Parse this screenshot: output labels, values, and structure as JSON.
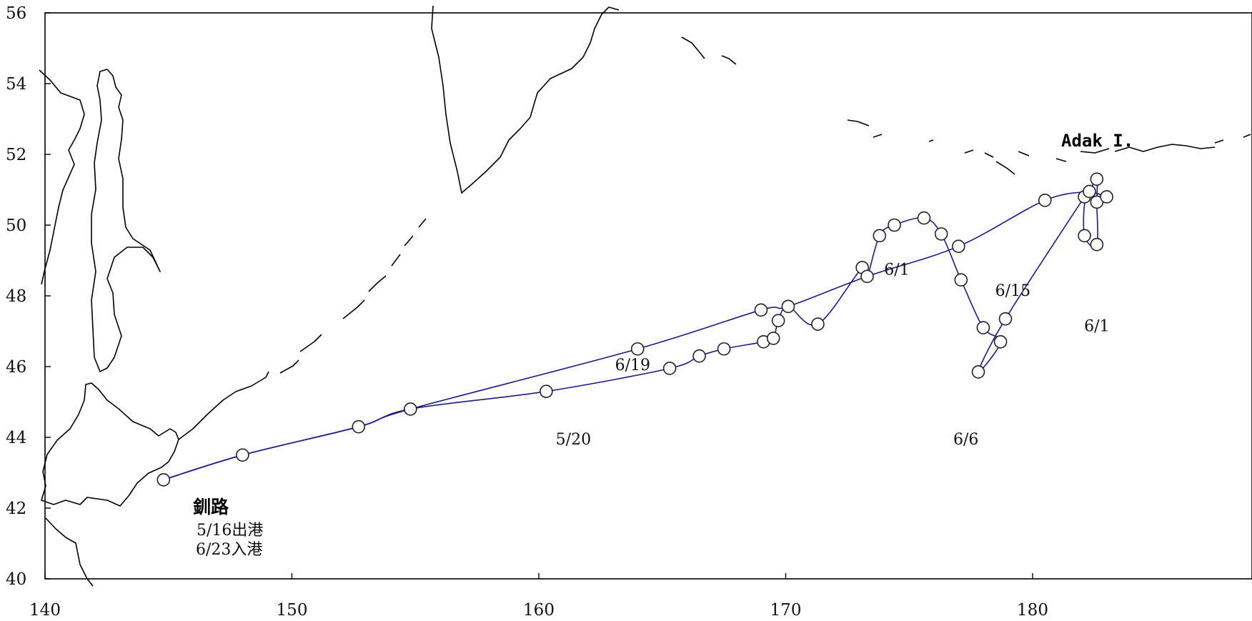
{
  "axes": {
    "lon_ticks": [
      {
        "value": 140,
        "label": "140"
      },
      {
        "value": 150,
        "label": "150"
      },
      {
        "value": 160,
        "label": "160"
      },
      {
        "value": 170,
        "label": "170"
      },
      {
        "value": 180,
        "label": "180"
      }
    ],
    "lat_ticks": [
      {
        "value": 56,
        "label": "56"
      },
      {
        "value": 54,
        "label": "54"
      },
      {
        "value": 52,
        "label": "52"
      },
      {
        "value": 50,
        "label": "50"
      },
      {
        "value": 48,
        "label": "48"
      },
      {
        "value": 46,
        "label": "46"
      },
      {
        "value": 44,
        "label": "44"
      },
      {
        "value": 42,
        "label": "42"
      },
      {
        "value": 40,
        "label": "40"
      }
    ]
  },
  "places": {
    "adak": "Adak I.",
    "port_name": "釧路",
    "departure": "5/16出港",
    "arrival": "6/23入港"
  },
  "date_labels": [
    {
      "text": "5/20",
      "lon": 161.4,
      "lat": 43.8
    },
    {
      "text": "6/19",
      "lon": 163.8,
      "lat": 45.9
    },
    {
      "text": "6/1",
      "lon": 174.5,
      "lat": 48.6
    },
    {
      "text": "6/15",
      "lon": 179.2,
      "lat": 48.0
    },
    {
      "text": "6/1",
      "lon": 182.6,
      "lat": 47.0
    },
    {
      "text": "6/6",
      "lon": 177.3,
      "lat": 43.8
    }
  ],
  "colors": {
    "track": "#1a1a8c",
    "land_outline": "#000000",
    "background": "#ffffff"
  },
  "outbound_track": [
    [
      144.8,
      42.8
    ],
    [
      148.0,
      43.5
    ],
    [
      152.7,
      44.3
    ],
    [
      154.8,
      44.8
    ],
    [
      160.3,
      45.3
    ],
    [
      165.3,
      45.95
    ],
    [
      166.5,
      46.3
    ],
    [
      167.5,
      46.5
    ],
    [
      169.1,
      46.7
    ],
    [
      169.5,
      46.8
    ],
    [
      169.7,
      47.3
    ],
    [
      170.1,
      47.7
    ],
    [
      171.3,
      47.2
    ],
    [
      173.1,
      48.8
    ],
    [
      173.3,
      48.55
    ],
    [
      173.8,
      49.7
    ],
    [
      174.4,
      50.0
    ],
    [
      175.6,
      50.2
    ],
    [
      176.3,
      49.75
    ],
    [
      177.1,
      48.45
    ],
    [
      178.0,
      47.1
    ],
    [
      178.7,
      46.7
    ],
    [
      177.8,
      45.85
    ],
    [
      178.9,
      47.35
    ],
    [
      182.1,
      50.8
    ],
    [
      182.3,
      50.95
    ],
    [
      182.6,
      51.3
    ],
    [
      182.6,
      50.65
    ],
    [
      182.6,
      49.45
    ],
    [
      182.1,
      49.7
    ],
    [
      182.2,
      50.85
    ],
    [
      183.0,
      50.8
    ],
    [
      182.3,
      50.95
    ]
  ],
  "return_track": [
    [
      182.3,
      50.95
    ],
    [
      180.5,
      50.7
    ],
    [
      177.0,
      49.4
    ],
    [
      173.3,
      48.55
    ],
    [
      170.1,
      47.7
    ],
    [
      169.0,
      47.6
    ],
    [
      164.0,
      46.5
    ],
    [
      154.8,
      44.8
    ],
    [
      152.7,
      44.3
    ],
    [
      148.0,
      43.5
    ],
    [
      144.8,
      42.8
    ]
  ],
  "stations": [
    [
      144.8,
      42.8
    ],
    [
      148.0,
      43.5
    ],
    [
      152.7,
      44.3
    ],
    [
      154.8,
      44.8
    ],
    [
      160.3,
      45.3
    ],
    [
      164.0,
      46.5
    ],
    [
      165.3,
      45.95
    ],
    [
      166.5,
      46.3
    ],
    [
      167.5,
      46.5
    ],
    [
      169.0,
      47.6
    ],
    [
      169.1,
      46.7
    ],
    [
      169.5,
      46.8
    ],
    [
      169.7,
      47.3
    ],
    [
      170.1,
      47.7
    ],
    [
      171.3,
      47.2
    ],
    [
      173.1,
      48.8
    ],
    [
      173.3,
      48.55
    ],
    [
      173.8,
      49.7
    ],
    [
      174.4,
      50.0
    ],
    [
      175.6,
      50.2
    ],
    [
      176.3,
      49.75
    ],
    [
      177.0,
      49.4
    ],
    [
      177.1,
      48.45
    ],
    [
      177.8,
      45.85
    ],
    [
      178.0,
      47.1
    ],
    [
      178.7,
      46.7
    ],
    [
      178.9,
      47.35
    ],
    [
      180.5,
      50.7
    ],
    [
      182.1,
      49.7
    ],
    [
      182.1,
      50.8
    ],
    [
      182.3,
      50.95
    ],
    [
      182.6,
      51.3
    ],
    [
      182.6,
      50.65
    ],
    [
      182.6,
      49.45
    ],
    [
      183.0,
      50.8
    ]
  ]
}
